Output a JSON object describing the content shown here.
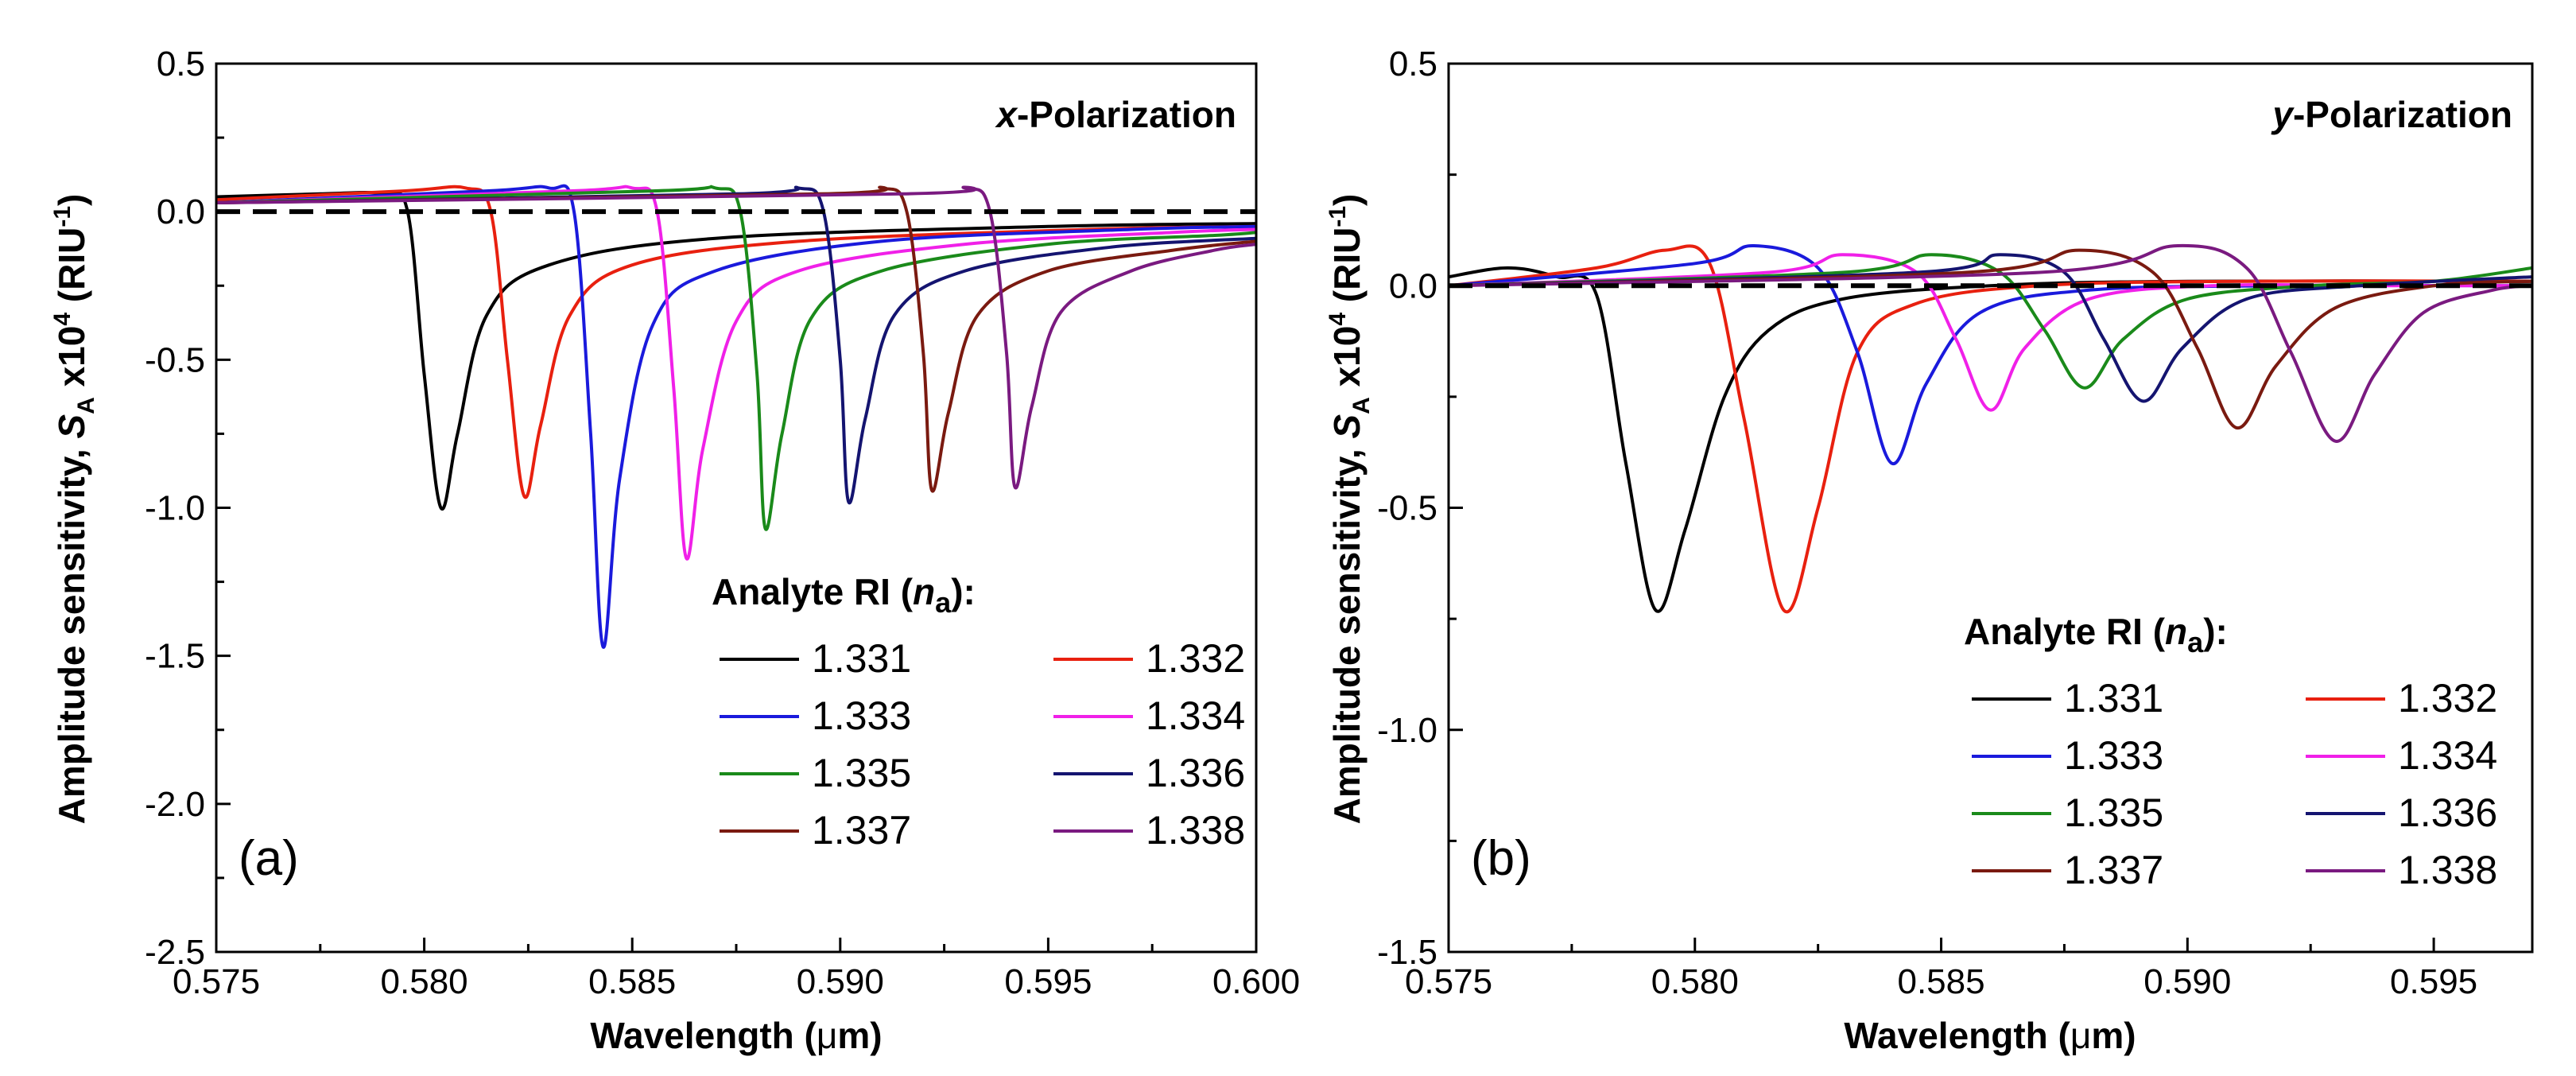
{
  "figure": {
    "y_title_main": "Amplitude sensitivity, ",
    "y_title_symbol": "S",
    "y_title_sub": "A",
    "y_title_mult": " x10",
    "y_title_exp": "4",
    "y_title_unit_open": " (RIU",
    "y_title_unit_exp": "-1",
    "y_title_unit_close": ")",
    "x_title_main": "Wavelength (",
    "x_title_mu": "μ",
    "x_title_end": "m)",
    "legend_title_main": "Analyte RI (",
    "legend_title_sym": "n",
    "legend_title_sub": "a",
    "legend_title_end": "):"
  },
  "colors": {
    "1.331": "#000000",
    "1.332": "#e8200f",
    "1.333": "#1a1adc",
    "1.334": "#f020e8",
    "1.335": "#1a8a1a",
    "1.336": "#141470",
    "1.337": "#7a1a10",
    "1.338": "#7a1a80",
    "baseline": "#000000"
  },
  "chart_data": [
    {
      "type": "line",
      "panel": "(a)",
      "polarization_letter": "x",
      "polarization_text": "-Polarization",
      "xlabel": "Wavelength (μm)",
      "ylabel": "Amplitude sensitivity, S_A x10^4 (RIU^-1)",
      "xlim": [
        0.575,
        0.6
      ],
      "ylim": [
        -2.5,
        0.5
      ],
      "xticks": [
        "0.575",
        "0.580",
        "0.585",
        "0.590",
        "0.595",
        "0.600"
      ],
      "yticks": [
        "0.5",
        "0.0",
        "-0.5",
        "-1.0",
        "-1.5",
        "-2.0",
        "-2.5"
      ],
      "reference_line": {
        "y": 0.0,
        "style": "dashed"
      },
      "legend_title": "Analyte RI (n_a):",
      "legend_position": "bottom-right",
      "series": [
        {
          "name": "1.331",
          "x": [
            0.575,
            0.5775,
            0.579,
            0.5796,
            0.58,
            0.5804,
            0.5808,
            0.5815,
            0.583,
            0.587,
            0.595,
            0.6
          ],
          "values": [
            0.05,
            0.06,
            0.06,
            0.0,
            -0.55,
            -1.0,
            -0.75,
            -0.35,
            -0.18,
            -0.09,
            -0.05,
            -0.04
          ]
        },
        {
          "name": "1.332",
          "x": [
            0.575,
            0.5795,
            0.581,
            0.5816,
            0.582,
            0.5824,
            0.5828,
            0.5835,
            0.585,
            0.589,
            0.596,
            0.6
          ],
          "values": [
            0.04,
            0.07,
            0.08,
            0.0,
            -0.5,
            -0.96,
            -0.72,
            -0.35,
            -0.18,
            -0.1,
            -0.06,
            -0.05
          ]
        },
        {
          "name": "1.333",
          "x": [
            0.575,
            0.5815,
            0.583,
            0.5836,
            0.584,
            0.5843,
            0.5847,
            0.5855,
            0.587,
            0.591,
            0.597,
            0.6
          ],
          "values": [
            0.03,
            0.07,
            0.08,
            0.0,
            -0.75,
            -1.47,
            -0.9,
            -0.38,
            -0.2,
            -0.1,
            -0.06,
            -0.05
          ]
        },
        {
          "name": "1.334",
          "x": [
            0.575,
            0.5835,
            0.585,
            0.5856,
            0.586,
            0.5863,
            0.5867,
            0.5875,
            0.589,
            0.593,
            0.598,
            0.6
          ],
          "values": [
            0.03,
            0.07,
            0.08,
            0.0,
            -0.6,
            -1.17,
            -0.8,
            -0.37,
            -0.2,
            -0.11,
            -0.07,
            -0.06
          ]
        },
        {
          "name": "1.335",
          "x": [
            0.575,
            0.5855,
            0.587,
            0.5876,
            0.588,
            0.5882,
            0.5886,
            0.5893,
            0.591,
            0.595,
            0.599,
            0.6
          ],
          "values": [
            0.03,
            0.07,
            0.08,
            0.0,
            -0.55,
            -1.07,
            -0.75,
            -0.36,
            -0.2,
            -0.11,
            -0.08,
            -0.07
          ]
        },
        {
          "name": "1.336",
          "x": [
            0.575,
            0.5875,
            0.589,
            0.5896,
            0.59,
            0.5902,
            0.5906,
            0.5913,
            0.593,
            0.5965,
            0.6
          ],
          "values": [
            0.03,
            0.06,
            0.08,
            0.0,
            -0.5,
            -0.98,
            -0.7,
            -0.35,
            -0.2,
            -0.12,
            -0.09
          ]
        },
        {
          "name": "1.337",
          "x": [
            0.575,
            0.5895,
            0.591,
            0.5916,
            0.592,
            0.5922,
            0.5926,
            0.5933,
            0.595,
            0.598,
            0.6
          ],
          "values": [
            0.03,
            0.06,
            0.08,
            0.0,
            -0.48,
            -0.94,
            -0.68,
            -0.35,
            -0.2,
            -0.13,
            -0.1
          ]
        },
        {
          "name": "1.338",
          "x": [
            0.575,
            0.5915,
            0.593,
            0.5936,
            0.594,
            0.5942,
            0.5946,
            0.5953,
            0.597,
            0.599,
            0.6
          ],
          "values": [
            0.03,
            0.06,
            0.08,
            0.0,
            -0.48,
            -0.93,
            -0.66,
            -0.34,
            -0.2,
            -0.13,
            -0.11
          ]
        }
      ]
    },
    {
      "type": "line",
      "panel": "(b)",
      "polarization_letter": "y",
      "polarization_text": "-Polarization",
      "xlabel": "Wavelength (μm)",
      "ylabel": "Amplitude sensitivity, S_A x10^4 (RIU^-1)",
      "xlim": [
        0.575,
        0.597
      ],
      "ylim": [
        -1.5,
        0.5
      ],
      "xticks": [
        "0.575",
        "0.580",
        "0.585",
        "0.590",
        "0.595"
      ],
      "yticks": [
        "0.5",
        "0.0",
        "-0.5",
        "-1.0",
        "-1.5"
      ],
      "reference_line": {
        "y": 0.0,
        "style": "dashed"
      },
      "legend_title": "Analyte RI (n_a):",
      "legend_position": "bottom-right",
      "series": [
        {
          "name": "1.331",
          "x": [
            0.575,
            0.5762,
            0.5772,
            0.578,
            0.5786,
            0.5792,
            0.5798,
            0.5806,
            0.5815,
            0.583,
            0.586,
            0.59,
            0.597
          ],
          "values": [
            0.02,
            0.04,
            0.02,
            -0.02,
            -0.4,
            -0.73,
            -0.55,
            -0.25,
            -0.1,
            -0.03,
            0.0,
            0.01,
            0.01
          ]
        },
        {
          "name": "1.332",
          "x": [
            0.575,
            0.578,
            0.5794,
            0.5803,
            0.581,
            0.5818,
            0.5825,
            0.5833,
            0.5845,
            0.587,
            0.591,
            0.597
          ],
          "values": [
            0.0,
            0.04,
            0.08,
            0.05,
            -0.3,
            -0.73,
            -0.5,
            -0.15,
            -0.04,
            0.0,
            0.01,
            0.01
          ]
        },
        {
          "name": "1.333",
          "x": [
            0.575,
            0.58,
            0.5812,
            0.5825,
            0.5833,
            0.584,
            0.5847,
            0.5858,
            0.588,
            0.592,
            0.597
          ],
          "values": [
            0.0,
            0.05,
            0.09,
            0.04,
            -0.15,
            -0.4,
            -0.22,
            -0.06,
            -0.01,
            0.0,
            0.0
          ]
        },
        {
          "name": "1.334",
          "x": [
            0.575,
            0.5815,
            0.583,
            0.5845,
            0.5853,
            0.586,
            0.5867,
            0.588,
            0.5905,
            0.594,
            0.597
          ],
          "values": [
            0.0,
            0.03,
            0.07,
            0.03,
            -0.12,
            -0.28,
            -0.14,
            -0.03,
            0.0,
            0.0,
            0.0
          ]
        },
        {
          "name": "1.335",
          "x": [
            0.575,
            0.583,
            0.5848,
            0.5862,
            0.5871,
            0.5879,
            0.5887,
            0.59,
            0.5925,
            0.595,
            0.597
          ],
          "values": [
            0.0,
            0.03,
            0.07,
            0.03,
            -0.1,
            -0.23,
            -0.12,
            -0.03,
            0.0,
            0.01,
            0.04
          ]
        },
        {
          "name": "1.336",
          "x": [
            0.575,
            0.5845,
            0.5862,
            0.5875,
            0.5883,
            0.5891,
            0.5899,
            0.5912,
            0.5935,
            0.597
          ],
          "values": [
            0.0,
            0.03,
            0.07,
            0.03,
            -0.12,
            -0.26,
            -0.14,
            -0.03,
            0.0,
            0.02
          ]
        },
        {
          "name": "1.337",
          "x": [
            0.575,
            0.5855,
            0.5878,
            0.5893,
            0.5902,
            0.591,
            0.5918,
            0.593,
            0.595,
            0.597
          ],
          "values": [
            0.0,
            0.03,
            0.08,
            0.03,
            -0.14,
            -0.32,
            -0.18,
            -0.05,
            0.0,
            0.01
          ]
        },
        {
          "name": "1.338",
          "x": [
            0.575,
            0.587,
            0.5898,
            0.5912,
            0.5921,
            0.593,
            0.5938,
            0.5948,
            0.5962,
            0.597
          ],
          "values": [
            0.0,
            0.03,
            0.09,
            0.04,
            -0.15,
            -0.35,
            -0.2,
            -0.06,
            -0.01,
            0.0
          ]
        }
      ]
    }
  ]
}
